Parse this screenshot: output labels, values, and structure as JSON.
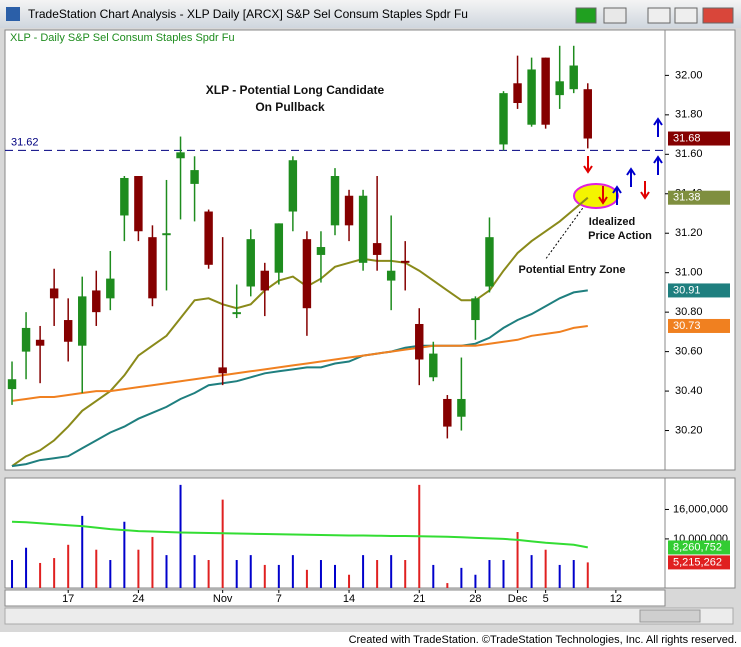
{
  "window_title": "TradeStation Chart Analysis - XLP Daily [ARCX] S&P Sel Consum Staples Spdr Fu",
  "footer": "Created with TradeStation. ©TradeStation Technologies, Inc. All rights reserved.",
  "chart_data": {
    "type": "candlestick",
    "subtitle": "XLP - Daily  S&P Sel Consum Staples Spdr Fu",
    "annotations": [
      "XLP - Potential Long Candidate",
      "On Pullback",
      "Idealized",
      "Price Action",
      "Potential Entry Zone"
    ],
    "up_color": "#1e8c1e",
    "down_color": "#850000",
    "candles": [
      {
        "open": 30.41,
        "high": 30.55,
        "low": 30.33,
        "close": 30.46
      },
      {
        "open": 30.6,
        "high": 30.8,
        "low": 30.46,
        "close": 30.72
      },
      {
        "open": 30.66,
        "high": 30.73,
        "low": 30.44,
        "close": 30.63
      },
      {
        "open": 30.92,
        "high": 31.02,
        "low": 30.73,
        "close": 30.87
      },
      {
        "open": 30.76,
        "high": 30.87,
        "low": 30.55,
        "close": 30.65
      },
      {
        "open": 30.63,
        "high": 30.98,
        "low": 30.39,
        "close": 30.88
      },
      {
        "open": 30.91,
        "high": 31.01,
        "low": 30.73,
        "close": 30.8
      },
      {
        "open": 30.87,
        "high": 31.11,
        "low": 30.81,
        "close": 30.97
      },
      {
        "open": 31.29,
        "high": 31.49,
        "low": 31.16,
        "close": 31.48
      },
      {
        "open": 31.49,
        "high": 31.49,
        "low": 31.16,
        "close": 31.21
      },
      {
        "open": 31.18,
        "high": 31.24,
        "low": 30.83,
        "close": 30.87
      },
      {
        "open": 31.19,
        "high": 31.47,
        "low": 30.91,
        "close": 31.2
      },
      {
        "open": 31.58,
        "high": 31.69,
        "low": 31.27,
        "close": 31.61
      },
      {
        "open": 31.45,
        "high": 31.59,
        "low": 31.26,
        "close": 31.52
      },
      {
        "open": 31.31,
        "high": 31.32,
        "low": 31.02,
        "close": 31.04
      },
      {
        "open": 30.52,
        "high": 31.18,
        "low": 30.43,
        "close": 30.49
      },
      {
        "open": 30.79,
        "high": 30.94,
        "low": 30.77,
        "close": 30.8
      },
      {
        "open": 30.93,
        "high": 31.22,
        "low": 30.88,
        "close": 31.17
      },
      {
        "open": 31.01,
        "high": 31.05,
        "low": 30.78,
        "close": 30.91
      },
      {
        "open": 31.0,
        "high": 31.25,
        "low": 30.94,
        "close": 31.25
      },
      {
        "open": 31.31,
        "high": 31.59,
        "low": 31.21,
        "close": 31.57
      },
      {
        "open": 31.17,
        "high": 31.21,
        "low": 30.68,
        "close": 30.82
      },
      {
        "open": 31.09,
        "high": 31.21,
        "low": 30.95,
        "close": 31.13
      },
      {
        "open": 31.24,
        "high": 31.53,
        "low": 31.19,
        "close": 31.49
      },
      {
        "open": 31.39,
        "high": 31.42,
        "low": 31.16,
        "close": 31.24
      },
      {
        "open": 31.05,
        "high": 31.42,
        "low": 31.01,
        "close": 31.39
      },
      {
        "open": 31.15,
        "high": 31.49,
        "low": 31.01,
        "close": 31.09
      },
      {
        "open": 30.96,
        "high": 31.29,
        "low": 30.81,
        "close": 31.01
      },
      {
        "open": 31.06,
        "high": 31.16,
        "low": 30.91,
        "close": 31.05
      },
      {
        "open": 30.74,
        "high": 30.82,
        "low": 30.43,
        "close": 30.56
      },
      {
        "open": 30.47,
        "high": 30.65,
        "low": 30.45,
        "close": 30.59
      },
      {
        "open": 30.36,
        "high": 30.38,
        "low": 30.16,
        "close": 30.22
      },
      {
        "open": 30.27,
        "high": 30.57,
        "low": 30.2,
        "close": 30.36
      },
      {
        "open": 30.76,
        "high": 30.88,
        "low": 30.66,
        "close": 30.87
      },
      {
        "open": 30.93,
        "high": 31.28,
        "low": 30.9,
        "close": 31.18
      },
      {
        "open": 31.65,
        "high": 31.92,
        "low": 31.62,
        "close": 31.91
      },
      {
        "open": 31.96,
        "high": 32.1,
        "low": 31.83,
        "close": 31.86
      },
      {
        "open": 31.75,
        "high": 32.09,
        "low": 31.74,
        "close": 32.03
      },
      {
        "open": 32.09,
        "high": 32.09,
        "low": 31.73,
        "close": 31.75
      },
      {
        "open": 31.9,
        "high": 32.15,
        "low": 31.83,
        "close": 31.97
      },
      {
        "open": 31.93,
        "high": 32.15,
        "low": 31.91,
        "close": 32.05
      },
      {
        "open": 31.93,
        "high": 31.96,
        "low": 31.63,
        "close": 31.68
      }
    ],
    "averages": [
      {
        "color": "#8a8a1a",
        "values": [
          30.02,
          30.07,
          30.1,
          30.15,
          30.22,
          30.3,
          30.35,
          30.4,
          30.48,
          30.58,
          30.63,
          30.68,
          30.77,
          30.86,
          30.87,
          30.84,
          30.82,
          30.84,
          30.91,
          30.96,
          30.98,
          30.93,
          30.97,
          31.03,
          31.05,
          31.07,
          31.06,
          31.06,
          31.05,
          31.01,
          30.96,
          30.91,
          30.86,
          30.86,
          30.91,
          31.01,
          31.1,
          31.16,
          31.21,
          31.26,
          31.32,
          31.38
        ]
      },
      {
        "color": "#1f7f7f",
        "values": [
          30.02,
          30.03,
          30.05,
          30.06,
          30.07,
          30.11,
          30.15,
          30.19,
          30.22,
          30.26,
          30.29,
          30.32,
          30.36,
          30.39,
          30.43,
          30.44,
          30.45,
          30.47,
          30.49,
          30.5,
          30.51,
          30.52,
          30.52,
          30.54,
          30.55,
          30.58,
          30.59,
          30.6,
          30.62,
          30.63,
          30.63,
          30.63,
          30.63,
          30.64,
          30.67,
          30.72,
          30.76,
          30.79,
          30.83,
          30.87,
          30.9,
          30.91
        ]
      },
      {
        "color": "#f08020",
        "values": [
          30.35,
          30.36,
          30.37,
          30.37,
          30.38,
          30.39,
          30.4,
          30.4,
          30.41,
          30.42,
          30.43,
          30.44,
          30.45,
          30.46,
          30.47,
          30.48,
          30.49,
          30.5,
          30.51,
          30.52,
          30.53,
          30.54,
          30.55,
          30.56,
          30.57,
          30.58,
          30.59,
          30.6,
          30.61,
          30.62,
          30.63,
          30.63,
          30.63,
          30.63,
          30.64,
          30.65,
          30.66,
          30.68,
          30.69,
          30.7,
          30.72,
          30.73
        ]
      }
    ],
    "reference_line": {
      "value": 31.62,
      "label": "31.62",
      "color": "#000080"
    },
    "markers": [
      {
        "value": 31.68,
        "label": "31.68",
        "color": "#850000",
        "text_color": "#ffffff"
      },
      {
        "value": 31.38,
        "label": "31.38",
        "color": "#7f8f3f",
        "text_color": "#ffffff"
      },
      {
        "value": 30.91,
        "label": "30.91",
        "color": "#1f7f7f",
        "text_color": "#ffffff"
      },
      {
        "value": 30.73,
        "label": "30.73",
        "color": "#f08020",
        "text_color": "#ffffff"
      }
    ],
    "xlim": [
      -0.5,
      46.5
    ],
    "xticks": [
      {
        "value": 4,
        "label": "17"
      },
      {
        "value": 9,
        "label": "24"
      },
      {
        "value": 15,
        "label": "Nov"
      },
      {
        "value": 19,
        "label": "7"
      },
      {
        "value": 24,
        "label": "14"
      },
      {
        "value": 29,
        "label": "21"
      },
      {
        "value": 33,
        "label": "28"
      },
      {
        "value": 36,
        "label": "Dec"
      },
      {
        "value": 38,
        "label": "5"
      },
      {
        "value": 43,
        "label": "12"
      }
    ],
    "ylim": [
      30.0,
      32.23
    ],
    "yticks": [
      {
        "value": 30.2,
        "label": "30.20"
      },
      {
        "value": 30.4,
        "label": "30.40"
      },
      {
        "value": 30.6,
        "label": "30.60"
      },
      {
        "value": 30.8,
        "label": "30.80"
      },
      {
        "value": 31.0,
        "label": "31.00"
      },
      {
        "value": 31.2,
        "label": "31.20"
      },
      {
        "value": 31.4,
        "label": "31.40"
      },
      {
        "value": 31.6,
        "label": "31.60"
      },
      {
        "value": 31.8,
        "label": "31.80"
      },
      {
        "value": 32.0,
        "label": "32.00"
      }
    ],
    "volume": {
      "up_color": "#0000cc",
      "down_color": "#e02020",
      "average_color": "#33dd33",
      "values": [
        5700000,
        8200000,
        5100000,
        6100000,
        8800000,
        14700000,
        7800000,
        5700000,
        13500000,
        7800000,
        10400000,
        6700000,
        21000000,
        6700000,
        5700000,
        18000000,
        5700000,
        6700000,
        4700000,
        4700000,
        6700000,
        3700000,
        5700000,
        4700000,
        2700000,
        6700000,
        5700000,
        6700000,
        5700000,
        21000000,
        4700000,
        1000000,
        4100000,
        2700000,
        5700000,
        5700000,
        11400000,
        6700000,
        7800000,
        4700000,
        5700000,
        5215262
      ],
      "average": [
        13500000,
        13400000,
        13200000,
        13000000,
        12800000,
        12600000,
        12300000,
        12000000,
        11800000,
        11600000,
        11500000,
        11400000,
        11300000,
        11250000,
        11200000,
        11150000,
        11100000,
        11050000,
        11000000,
        10950000,
        10900000,
        10850000,
        10800000,
        10750000,
        10700000,
        10700000,
        10650000,
        10600000,
        10600000,
        10550000,
        10500000,
        10450000,
        10350000,
        10200000,
        10100000,
        10000000,
        9800000,
        9500000,
        9200000,
        9000000,
        8800000,
        8260752
      ],
      "ylim": [
        0,
        22000000
      ],
      "yticks": [
        {
          "value": 10000000,
          "label": "10,000,000"
        },
        {
          "value": 16000000,
          "label": "16,000,000"
        }
      ],
      "markers": [
        {
          "value": 8260752,
          "label": "8,260,752",
          "color": "#33cc33",
          "text_color": "#ffffff"
        },
        {
          "value": 5215262,
          "label": "5,215,262",
          "color": "#e02020",
          "text_color": "#ffffff"
        }
      ]
    }
  }
}
